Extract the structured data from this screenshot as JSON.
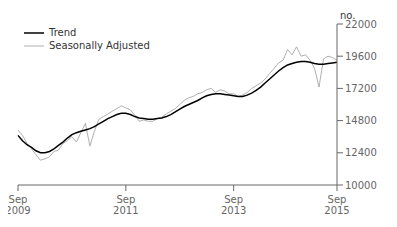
{
  "chart_data": {
    "type": "line",
    "annotations": [
      "no."
    ],
    "categories": [
      "Sep\n2009",
      null,
      null,
      null,
      null,
      null,
      null,
      null,
      null,
      null,
      null,
      null,
      null,
      null,
      null,
      null,
      null,
      null,
      null,
      null,
      null,
      null,
      null,
      null,
      "Sep\n2011",
      null,
      null,
      null,
      null,
      null,
      null,
      null,
      null,
      null,
      null,
      null,
      null,
      null,
      null,
      null,
      null,
      null,
      null,
      null,
      null,
      null,
      null,
      null,
      "Sep\n2013",
      null,
      null,
      null,
      null,
      null,
      null,
      null,
      null,
      null,
      null,
      null,
      null,
      null,
      null,
      null,
      null,
      null,
      null,
      null,
      null,
      null,
      null,
      "Sep\n2015"
    ],
    "series": [
      {
        "name": "Trend",
        "color": "#000000",
        "values": [
          13700,
          13300,
          13000,
          12800,
          12550,
          12400,
          12400,
          12500,
          12700,
          12950,
          13200,
          13500,
          13750,
          13900,
          14000,
          14100,
          14200,
          14350,
          14550,
          14750,
          14950,
          15100,
          15250,
          15350,
          15350,
          15250,
          15100,
          15000,
          14950,
          14900,
          14900,
          14950,
          15000,
          15100,
          15250,
          15450,
          15650,
          15850,
          16000,
          16150,
          16300,
          16500,
          16650,
          16750,
          16800,
          16800,
          16750,
          16700,
          16650,
          16600,
          16600,
          16700,
          16850,
          17050,
          17300,
          17600,
          17900,
          18200,
          18500,
          18750,
          18950,
          19050,
          19150,
          19200,
          19200,
          19150,
          19050,
          19000,
          19000,
          19050,
          19100,
          19150
        ]
      },
      {
        "name": "Seasonally Adjusted",
        "color": "#b0b0b0",
        "values": [
          14100,
          13700,
          13100,
          12700,
          12250,
          11850,
          11950,
          12100,
          12500,
          12600,
          13100,
          13300,
          13600,
          13200,
          13900,
          14600,
          12900,
          14000,
          14900,
          15100,
          15300,
          15500,
          15700,
          15900,
          15750,
          15600,
          15200,
          14750,
          14850,
          14750,
          14750,
          14950,
          15050,
          15300,
          15500,
          15700,
          16000,
          16300,
          16500,
          16600,
          16800,
          16900,
          17100,
          17200,
          16900,
          17100,
          17000,
          16800,
          16800,
          16600,
          16700,
          16900,
          17200,
          17400,
          17600,
          17900,
          18300,
          18700,
          19100,
          19300,
          20100,
          19700,
          20300,
          19600,
          19700,
          19300,
          18700,
          17300,
          19400,
          19600,
          19500,
          19300
        ]
      }
    ],
    "ylim": [
      10000,
      22000
    ],
    "yticks": [
      10000,
      12400,
      14800,
      17200,
      19600,
      22000
    ],
    "grid": false,
    "legend": "upper left"
  }
}
